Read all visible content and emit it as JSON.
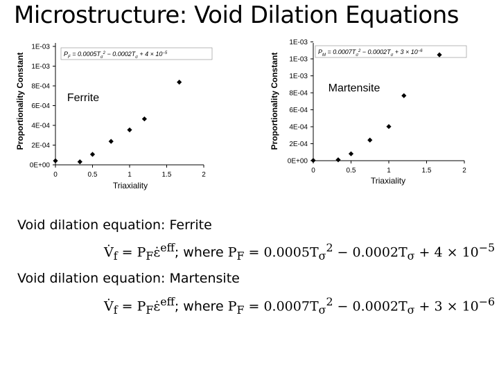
{
  "title": "Microstructure: Void Dilation Equations",
  "chart_data": [
    {
      "type": "scatter",
      "name": "ferrite",
      "label": "Ferrite",
      "xlabel": "Triaxiality",
      "ylabel": "Proportionality Constant",
      "x_ticks": [
        "0",
        "0.5",
        "1",
        "1.5",
        "2"
      ],
      "y_ticks": [
        "0E+00",
        "2E-04",
        "4E-04",
        "6E-04",
        "8E-04",
        "1E-03",
        "1E-03"
      ],
      "xlim": [
        0,
        2
      ],
      "ylim": [
        0,
        0.0012
      ],
      "grid": false,
      "inset_equation": "P_F = 0.0005T_σ^2 − 0.0002T_σ + 4 × 10^−5",
      "x": [
        0.0,
        0.33,
        0.5,
        0.75,
        1.0,
        1.2,
        1.67
      ],
      "y": [
        4e-05,
        3e-05,
        0.000103,
        0.000231,
        0.000344,
        0.000452,
        0.000814
      ]
    },
    {
      "type": "scatter",
      "name": "martensite",
      "label": "Martensite",
      "xlabel": "Triaxiality",
      "ylabel": "Proportionality Constant",
      "x_ticks": [
        "0",
        "0.5",
        "1",
        "1.5",
        "2"
      ],
      "y_ticks": [
        "0E+00",
        "2E-04",
        "4E-04",
        "6E-04",
        "8E-04",
        "1E-03",
        "1E-03",
        "1E-03"
      ],
      "xlim": [
        0,
        2
      ],
      "ylim": [
        0,
        0.0014
      ],
      "grid": false,
      "inset_equation": "P_M = 0.0007T_σ^2 − 0.0002T_σ + 3 × 10^−6",
      "x": [
        0.0,
        0.33,
        0.5,
        0.75,
        1.0,
        1.2,
        1.67
      ],
      "y": [
        3e-06,
        1e-05,
        8.2e-05,
        0.000245,
        0.000406,
        0.000773,
        0.001259
      ]
    }
  ],
  "sections": [
    {
      "label": "Void dilation equation: Ferrite",
      "equation": {
        "prefix": "V̇",
        "sub": "f",
        "body": " = P",
        "body_sub": "F",
        "rate": "ε̇",
        "rate_sup": "eff",
        "where": "; where ",
        "p": "P",
        "p_sub": "F",
        "rhs": " = 0.0005T",
        "t_sub": "σ",
        "t_sup": "2",
        "rest": " − 0.0002T",
        "rest_sub": "σ",
        "tail": " + 4 × 10",
        "tail_sup": "−5"
      }
    },
    {
      "label": "Void dilation equation: Martensite",
      "equation": {
        "prefix": "V̇",
        "sub": "f",
        "body": " = P",
        "body_sub": "F",
        "rate": "ε̇",
        "rate_sup": "eff",
        "where": "; where ",
        "p": "P",
        "p_sub": "F",
        "rhs": " = 0.0007T",
        "t_sub": "σ",
        "t_sup": "2",
        "rest": " − 0.0002T",
        "rest_sub": "σ",
        "tail": " + 3 × 10",
        "tail_sup": "−6"
      }
    }
  ]
}
